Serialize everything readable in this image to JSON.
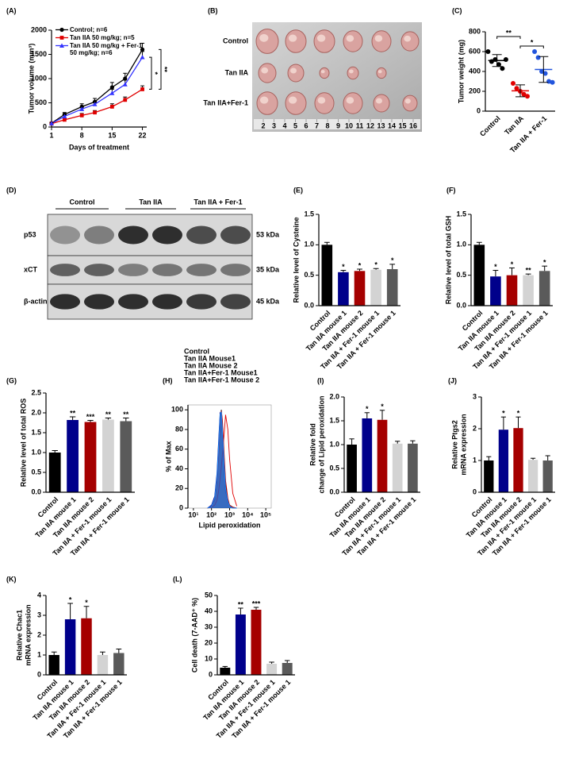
{
  "chart_data": [
    {
      "type": "line",
      "panel": "(A)",
      "ylabel": "Tumor volume (mm³)",
      "xlabel": "Days of treatment",
      "x": [
        1,
        4,
        8,
        11,
        15,
        18,
        22
      ],
      "xlim": [
        1,
        23
      ],
      "xticks": [
        1,
        8,
        15,
        22
      ],
      "ylim": [
        0,
        2000
      ],
      "yticks": [
        0,
        500,
        1000,
        1500,
        2000
      ],
      "series": [
        {
          "name": "Control; n=6",
          "color": "#000000",
          "marker": "circle",
          "values": [
            80,
            260,
            420,
            520,
            820,
            1000,
            1600
          ],
          "errors": [
            20,
            40,
            60,
            70,
            100,
            110,
            130
          ]
        },
        {
          "name": "Tan IIA 50 mg/kg; n=5",
          "color": "#e00000",
          "marker": "square",
          "values": [
            70,
            150,
            240,
            300,
            420,
            560,
            780
          ],
          "errors": [
            15,
            25,
            40,
            40,
            60,
            60,
            70
          ]
        },
        {
          "name": "Tan IIA 50 mg/kg + Fer-1 50 mg/kg; n=6",
          "color": "#3333ff",
          "marker": "triangle",
          "values": [
            75,
            220,
            370,
            470,
            700,
            880,
            1440
          ],
          "errors": [
            15,
            35,
            50,
            60,
            80,
            90,
            120
          ]
        }
      ],
      "significance": [
        "*",
        "**"
      ]
    },
    {
      "type": "dot",
      "panel": "(C)",
      "ylabel": "Tumor weight (mg)",
      "categories": [
        "Control",
        "Tan IIA",
        "Tan IIA + Fer-1"
      ],
      "points": [
        [
          600,
          500,
          520,
          470,
          430,
          520
        ],
        [
          280,
          230,
          200,
          170,
          150
        ],
        [
          600,
          540,
          400,
          380,
          300,
          290
        ]
      ],
      "means": [
        510,
        205,
        420
      ],
      "errors": [
        60,
        60,
        130
      ],
      "colors": [
        "#000000",
        "#e00000",
        "#2255dd"
      ],
      "ylim": [
        0,
        800
      ],
      "yticks": [
        0,
        200,
        400,
        600,
        800
      ],
      "significance": [
        "**",
        "*"
      ]
    },
    {
      "type": "bar",
      "panel": "(E)",
      "ylabel": "Relative level of Cysteine",
      "categories": [
        "Control",
        "Tan IIA mouse 1",
        "Tan IIA mouse 2",
        "Tan IIA + Fer-1 mouse 1",
        "Tan IIA + Fer-1 mouse 1"
      ],
      "values": [
        1.0,
        0.55,
        0.57,
        0.59,
        0.6
      ],
      "errors": [
        0.04,
        0.03,
        0.03,
        0.02,
        0.08
      ],
      "annotations": [
        null,
        "*",
        "*",
        "*",
        "*"
      ],
      "colors": [
        "#000000",
        "#00008b",
        "#a50000",
        "#d3d3d3",
        "#5a5a5a"
      ],
      "ylim": [
        0,
        1.5
      ],
      "yticks": [
        {
          "value": 0,
          "label": "0.0"
        },
        0.5,
        {
          "value": 1,
          "label": "1.0"
        },
        1.5
      ]
    },
    {
      "type": "bar",
      "panel": "(F)",
      "ylabel": "Relative level of total GSH",
      "categories": [
        "Control",
        "Tan IIA mouse 1",
        "Tan IIA mouse 2",
        "Tan IIA + Fer-1 mouse 1",
        "Tan IIA + Fer-1 mouse 1"
      ],
      "values": [
        1.0,
        0.48,
        0.5,
        0.5,
        0.57
      ],
      "errors": [
        0.04,
        0.1,
        0.12,
        0.02,
        0.08
      ],
      "annotations": [
        null,
        "*",
        "*",
        "**",
        "*"
      ],
      "colors": [
        "#000000",
        "#00008b",
        "#a50000",
        "#d3d3d3",
        "#5a5a5a"
      ],
      "ylim": [
        0,
        1.5
      ],
      "yticks": [
        {
          "value": 0,
          "label": "0.0"
        },
        0.5,
        {
          "value": 1,
          "label": "1.0"
        },
        1.5
      ]
    },
    {
      "type": "bar",
      "panel": "(G)",
      "ylabel": "Relative level of total ROS",
      "categories": [
        "Control",
        "Tan IIA mouse 1",
        "Tan IIA mouse 2",
        "Tan IIA + Fer-1 mouse 1",
        "Tan IIA + Fer-1 mouse 1"
      ],
      "values": [
        1.0,
        1.82,
        1.77,
        1.83,
        1.79
      ],
      "errors": [
        0.05,
        0.08,
        0.04,
        0.04,
        0.08
      ],
      "annotations": [
        null,
        "**",
        "***",
        "**",
        "**"
      ],
      "colors": [
        "#000000",
        "#00008b",
        "#a50000",
        "#d3d3d3",
        "#5a5a5a"
      ],
      "ylim": [
        0,
        2.5
      ],
      "yticks": [
        {
          "value": 0,
          "label": "0.0"
        },
        0.5,
        {
          "value": 1,
          "label": "1.0"
        },
        1.5,
        {
          "value": 2,
          "label": "2.0"
        },
        2.5
      ]
    },
    {
      "type": "flow",
      "panel": "(H)",
      "ylabel": "% of Max",
      "xlabel": "Lipid peroxidation",
      "x": [
        60,
        100,
        150,
        200,
        250,
        300,
        350,
        400,
        500,
        600,
        800,
        1000,
        1500,
        2500
      ],
      "xlim": [
        5,
        200000
      ],
      "xticks": [
        {
          "value": 10,
          "label": "10¹"
        },
        {
          "value": 100,
          "label": "10²"
        },
        {
          "value": 1000,
          "label": "10³"
        },
        {
          "value": 10000,
          "label": "10⁴"
        },
        {
          "value": 100000,
          "label": "10⁵"
        }
      ],
      "ylim": [
        0,
        105
      ],
      "yticks": [
        0,
        20,
        40,
        60,
        80,
        100
      ],
      "log_x": true,
      "series": [
        {
          "name": "Control",
          "color": "#000000",
          "values": [
            0,
            2,
            10,
            30,
            60,
            90,
            100,
            85,
            50,
            25,
            8,
            3,
            1,
            0
          ]
        },
        {
          "name": "Tan IIA Mouse1",
          "color": "#e00000",
          "values": [
            0,
            1,
            3,
            8,
            18,
            30,
            42,
            55,
            75,
            95,
            80,
            50,
            15,
            2
          ]
        },
        {
          "name": "Tan IIA Mouse 2",
          "color": "#c00000",
          "values": [
            0,
            2,
            8,
            25,
            55,
            85,
            99,
            90,
            55,
            28,
            10,
            3,
            1,
            0
          ]
        },
        {
          "name": "Tan IIA+Fer-1 Mouse1",
          "color": "#00008b",
          "values": [
            0,
            3,
            12,
            35,
            70,
            97,
            95,
            75,
            40,
            18,
            6,
            2,
            0,
            0
          ]
        },
        {
          "name": "Tan IIA+Fer-1 Mouse 2",
          "color": "#1e90ff",
          "values": [
            0,
            2,
            10,
            32,
            65,
            95,
            98,
            80,
            45,
            20,
            7,
            2,
            0,
            0
          ]
        }
      ]
    },
    {
      "type": "bar",
      "panel": "(I)",
      "ylabel": [
        "Relative fold",
        "change of Lipid peroxidation"
      ],
      "categories": [
        "Control",
        "Tan IIA mouse 1",
        "Tan IIA mouse 2",
        "Tan IIA + Fer-1 mouse 1",
        "Tan IIA + Fer-1 mouse 1"
      ],
      "values": [
        1.0,
        1.55,
        1.52,
        1.02,
        1.02
      ],
      "errors": [
        0.12,
        0.12,
        0.2,
        0.05,
        0.06
      ],
      "annotations": [
        null,
        "*",
        "*",
        null,
        null
      ],
      "colors": [
        "#000000",
        "#00008b",
        "#a50000",
        "#d3d3d3",
        "#5a5a5a"
      ],
      "ylim": [
        0,
        2
      ],
      "yticks": [
        {
          "value": 0,
          "label": "0.0"
        },
        0.5,
        {
          "value": 1,
          "label": "1.0"
        },
        1.5,
        {
          "value": 2,
          "label": "2.0"
        }
      ]
    },
    {
      "type": "bar",
      "panel": "(J)",
      "ylabel": [
        "Relative Ptgs2",
        "mRNA expression"
      ],
      "categories": [
        "Control",
        "Tan IIA mouse 1",
        "Tan IIA mouse 2",
        "Tan IIA + Fer-1 mouse 1",
        "Tan IIA + Fer-1 mouse 1"
      ],
      "values": [
        1.0,
        1.97,
        2.02,
        1.02,
        1.0
      ],
      "errors": [
        0.12,
        0.4,
        0.35,
        0.05,
        0.15
      ],
      "annotations": [
        null,
        "*",
        "*",
        null,
        null
      ],
      "colors": [
        "#000000",
        "#00008b",
        "#a50000",
        "#d3d3d3",
        "#5a5a5a"
      ],
      "ylim": [
        0,
        3
      ],
      "yticks": [
        0,
        1,
        2,
        3
      ]
    },
    {
      "type": "bar",
      "panel": "(K)",
      "ylabel": [
        "Relative Chac1",
        "mRNA expression"
      ],
      "categories": [
        "Control",
        "Tan IIA mouse 1",
        "Tan IIA mouse 2",
        "Tan IIA + Fer-1 mouse 1",
        "Tan IIA + Fer-1 mouse 1"
      ],
      "values": [
        1.0,
        2.8,
        2.85,
        1.0,
        1.1
      ],
      "errors": [
        0.15,
        0.8,
        0.6,
        0.15,
        0.2
      ],
      "annotations": [
        null,
        "*",
        "*",
        null,
        null
      ],
      "colors": [
        "#000000",
        "#00008b",
        "#a50000",
        "#d3d3d3",
        "#5a5a5a"
      ],
      "ylim": [
        0,
        4
      ],
      "yticks": [
        0,
        1,
        2,
        3,
        4
      ]
    },
    {
      "type": "bar",
      "panel": "(L)",
      "ylabel": "Cell death (7-AAD⁺ %)",
      "categories": [
        "Control",
        "Tan IIA mouse 1",
        "Tan IIA mouse 2",
        "Tan IIA + Fer-1 mouse 1",
        "Tan IIA + Fer-1 mouse 1"
      ],
      "values": [
        4.5,
        38,
        41,
        7,
        7.5
      ],
      "errors": [
        0.8,
        4,
        1.5,
        1,
        1.5
      ],
      "annotations": [
        null,
        "**",
        "***",
        null,
        null
      ],
      "colors": [
        "#000000",
        "#00008b",
        "#a50000",
        "#d3d3d3",
        "#5a5a5a"
      ],
      "ylim": [
        0,
        50
      ],
      "yticks": [
        0,
        10,
        20,
        30,
        40,
        50
      ]
    }
  ],
  "photo_panel": {
    "panel": "(B)",
    "rows": [
      "Control",
      "Tan IIA",
      "Tan IIA+Fer-1"
    ],
    "ruler_labels": [
      "2",
      "3",
      "4",
      "5",
      "6",
      "7",
      "8",
      "9",
      "10",
      "11",
      "12",
      "13",
      "14",
      "15",
      "16"
    ]
  },
  "blot_panel": {
    "panel": "(D)",
    "groups": [
      "Control",
      "Tan IIA",
      "Tan IIA + Fer-1"
    ],
    "rows": [
      {
        "label": "p53",
        "size": "53 kDa"
      },
      {
        "label": "xCT",
        "size": "35 kDa"
      },
      {
        "label": "β-actin",
        "size": "45 kDa"
      }
    ]
  }
}
